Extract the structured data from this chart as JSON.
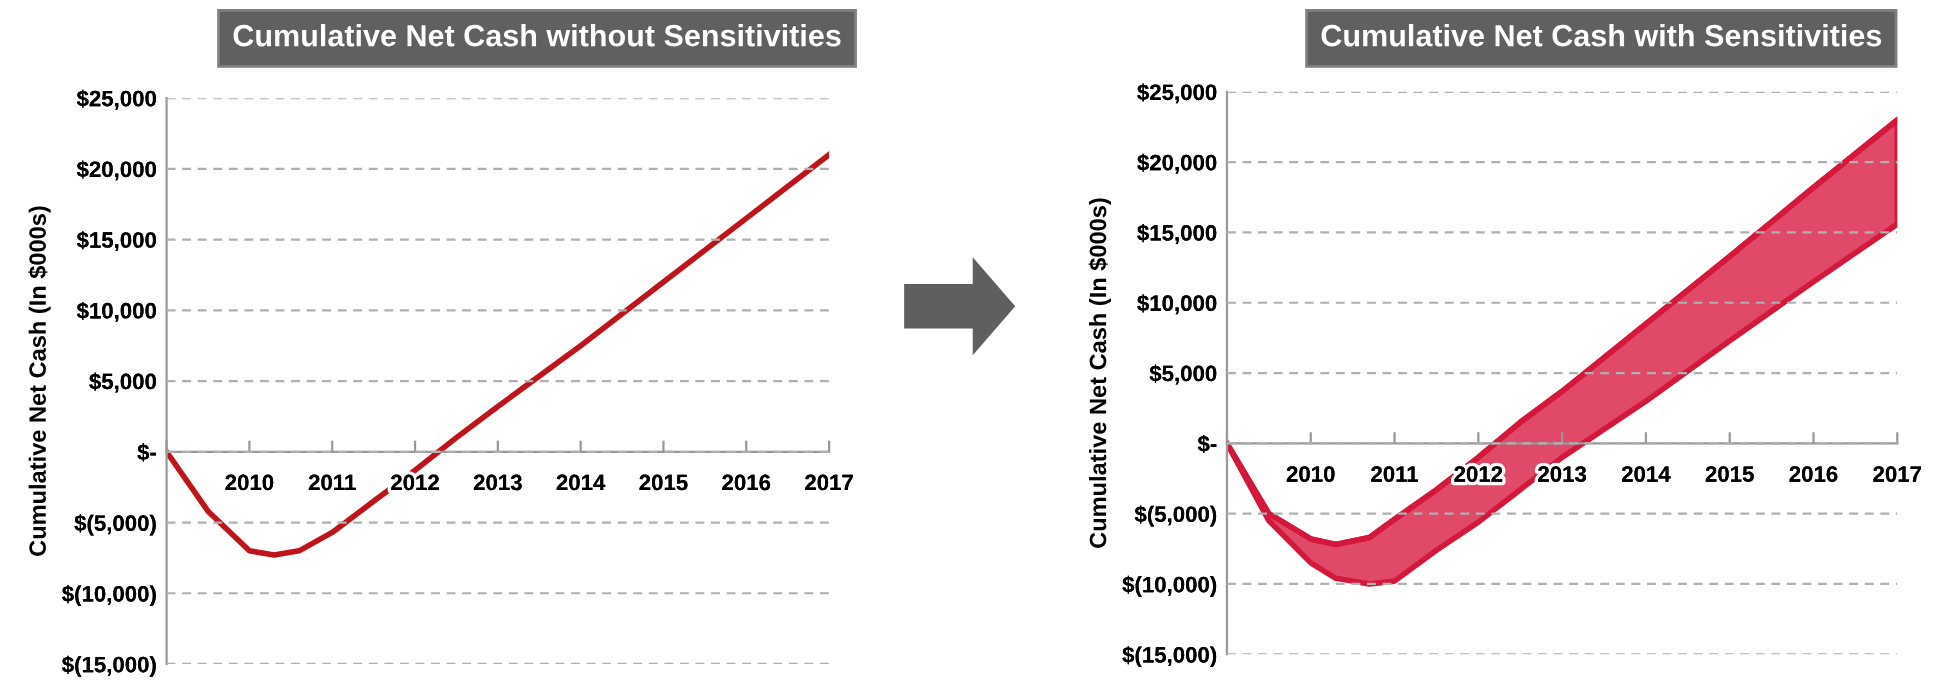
{
  "chart_data": [
    {
      "type": "line",
      "title": "Cumulative Net Cash without Sensitivities",
      "ylabel": "Cumulative Net Cash (In $000s)",
      "x": [
        2009,
        2009.5,
        2010,
        2010.3,
        2010.6,
        2011,
        2011.5,
        2012,
        2012.5,
        2013,
        2014,
        2015,
        2016,
        2017
      ],
      "series": [
        {
          "color": "#c0141c",
          "values": [
            0,
            -4200,
            -7000,
            -7300,
            -7000,
            -5700,
            -3500,
            -1300,
            1000,
            3200,
            7500,
            12000,
            16500,
            21000
          ]
        }
      ],
      "xlim": [
        2009,
        2017
      ],
      "xticks": [
        {
          "value": 2009,
          "label": null
        },
        2010,
        2011,
        2012,
        2013,
        2014,
        2015,
        2016,
        2017
      ],
      "ylim": [
        -15000,
        25000
      ],
      "yticks": [
        {
          "value": -15000,
          "label": "$(15,000)"
        },
        {
          "value": -10000,
          "label": "$(10,000)"
        },
        {
          "value": -5000,
          "label": "$(5,000)"
        },
        {
          "value": 0,
          "label": "$-"
        },
        {
          "value": 5000,
          "label": "$5,000"
        },
        {
          "value": 10000,
          "label": "$10,000"
        },
        {
          "value": 15000,
          "label": "$15,000"
        },
        {
          "value": 20000,
          "label": "$20,000"
        },
        {
          "value": 25000,
          "label": "$25,000"
        }
      ],
      "grid": "y",
      "line_style": "solid",
      "marker": "none"
    },
    {
      "type": "line",
      "title": "Cumulative Net Cash with Sensitivities",
      "ylabel": "Cumulative Net Cash (In $000s)",
      "x": [
        2009,
        2009.5,
        2010,
        2010.3,
        2010.7,
        2011,
        2011.5,
        2012,
        2012.5,
        2013,
        2014,
        2015,
        2016,
        2017
      ],
      "series": [
        {
          "color": "#d4183c",
          "values": [
            0,
            -5000,
            -6800,
            -7200,
            -6700,
            -5400,
            -3300,
            -1000,
            1500,
            3700,
            8500,
            13300,
            18200,
            23000
          ],
          "lower": [
            0,
            -5500,
            -8500,
            -9600,
            -10000,
            -9800,
            -7600,
            -5600,
            -3300,
            -1000,
            3000,
            7300,
            11500,
            15600
          ],
          "upper": [
            0,
            -5000,
            -6800,
            -7200,
            -6700,
            -5400,
            -3300,
            -1000,
            1500,
            3700,
            8500,
            13300,
            18200,
            23000
          ]
        }
      ],
      "xlim": [
        2009,
        2017
      ],
      "xticks": [
        {
          "value": 2009,
          "label": null
        },
        2010,
        2011,
        2012,
        2013,
        2014,
        2015,
        2016,
        2017
      ],
      "ylim": [
        -15000,
        25000
      ],
      "yticks": [
        {
          "value": -15000,
          "label": "$(15,000)"
        },
        {
          "value": -10000,
          "label": "$(10,000)"
        },
        {
          "value": -5000,
          "label": "$(5,000)"
        },
        {
          "value": 0,
          "label": "$-"
        },
        {
          "value": 5000,
          "label": "$5,000"
        },
        {
          "value": 10000,
          "label": "$10,000"
        },
        {
          "value": 15000,
          "label": "$15,000"
        },
        {
          "value": 20000,
          "label": "$20,000"
        },
        {
          "value": 25000,
          "label": "$25,000"
        }
      ],
      "grid": "y"
    }
  ]
}
